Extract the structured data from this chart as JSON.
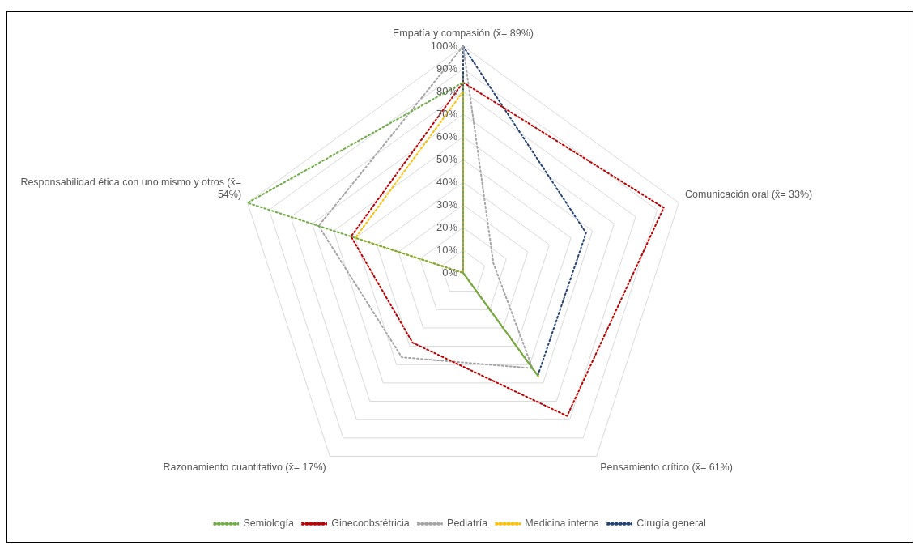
{
  "chart_data": {
    "type": "radar",
    "categories": [
      "Empatía y compasión (x̄= 89%)",
      "Comunicación oral (x̄= 33%)",
      "Pensamiento crítico (x̄= 61%)",
      "Razonamiento cuantitativo (x̄= 17%)",
      "Responsabilidad ética con uno mismo y otros (x̄= 54%)"
    ],
    "series": [
      {
        "name": "Semiología",
        "color": "#70ad47",
        "values": [
          84,
          0,
          56,
          0,
          100
        ]
      },
      {
        "name": "Ginecoobstétricia",
        "color": "#c00000",
        "values": [
          84,
          93,
          78,
          38,
          52
        ]
      },
      {
        "name": "Pediatría",
        "color": "#a5a5a5",
        "values": [
          100,
          14,
          52,
          46,
          67
        ]
      },
      {
        "name": "Medicina interna",
        "color": "#ffc000",
        "values": [
          80,
          0,
          57,
          0,
          50
        ]
      },
      {
        "name": "Cirugía general",
        "color": "#264478",
        "values": [
          100,
          57,
          56,
          0,
          0
        ]
      }
    ],
    "ylim": [
      0,
      100
    ],
    "yticks": [
      {
        "value": 0,
        "label": "0%"
      },
      {
        "value": 10,
        "label": "10%"
      },
      {
        "value": 20,
        "label": "20%"
      },
      {
        "value": 30,
        "label": "30%"
      },
      {
        "value": 40,
        "label": "40%"
      },
      {
        "value": 50,
        "label": "50%"
      },
      {
        "value": 60,
        "label": "60%"
      },
      {
        "value": 70,
        "label": "70%"
      },
      {
        "value": 80,
        "label": "80%"
      },
      {
        "value": 90,
        "label": "90%"
      },
      {
        "value": 100,
        "label": "100%"
      }
    ],
    "grid": true,
    "legend": "bottom",
    "marker": "none",
    "line_style": "dotted"
  }
}
